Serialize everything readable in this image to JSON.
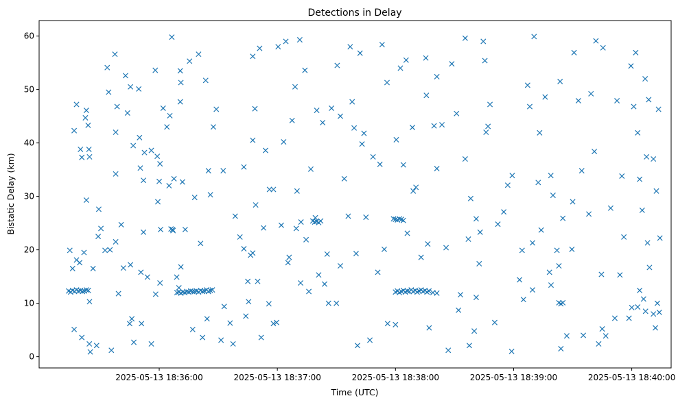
{
  "chart_data": {
    "type": "scatter",
    "title": "Detections in Delay",
    "xlabel": "Time (UTC)",
    "ylabel": "Bistatic Delay (km)",
    "x_reference": "2025-05-13 18:35:00",
    "x_units": "seconds since 2025-05-13 18:35:00",
    "xlim": [
      -1,
      320
    ],
    "ylim": [
      -2.1,
      62.9
    ],
    "x_ticks": [
      {
        "value": 60,
        "label": "2025-05-13 18:36:00"
      },
      {
        "value": 120,
        "label": "2025-05-13 18:37:00"
      },
      {
        "value": 180,
        "label": "2025-05-13 18:38:00"
      },
      {
        "value": 240,
        "label": "2025-05-13 18:39:00"
      },
      {
        "value": 300,
        "label": "2025-05-13 18:40:00"
      }
    ],
    "y_ticks": [
      {
        "value": 0,
        "label": "0"
      },
      {
        "value": 10,
        "label": "10"
      },
      {
        "value": 20,
        "label": "20"
      },
      {
        "value": 30,
        "label": "30"
      },
      {
        "value": 40,
        "label": "40"
      },
      {
        "value": 50,
        "label": "50"
      },
      {
        "value": 60,
        "label": "60"
      }
    ],
    "grid": false,
    "marker": "x",
    "color": "#1f77b4",
    "points": [
      [
        14.6,
        19.9
      ],
      [
        16,
        16.5
      ],
      [
        16.8,
        42.3
      ],
      [
        16.8,
        5.1
      ],
      [
        18,
        47.2
      ],
      [
        18,
        18.1
      ],
      [
        19.6,
        17.6
      ],
      [
        20,
        38.8
      ],
      [
        20.7,
        37.3
      ],
      [
        20.7,
        3.6
      ],
      [
        21.8,
        19.5
      ],
      [
        22.5,
        44.7
      ],
      [
        23,
        46.1
      ],
      [
        23,
        29.3
      ],
      [
        23.9,
        43.3
      ],
      [
        24.3,
        38.8
      ],
      [
        24.6,
        37.4
      ],
      [
        24.6,
        10.3
      ],
      [
        25,
        0.9
      ],
      [
        26.4,
        16.5
      ],
      [
        28.2,
        2.1
      ],
      [
        29,
        22.5
      ],
      [
        29.3,
        27.6
      ],
      [
        30.4,
        24
      ],
      [
        32.5,
        19.9
      ],
      [
        33.6,
        54.1
      ],
      [
        34.3,
        49.5
      ],
      [
        35.7,
        1.2
      ],
      [
        37.5,
        56.6
      ],
      [
        37.9,
        42
      ],
      [
        37.9,
        34.2
      ],
      [
        37.9,
        21.5
      ],
      [
        38.6,
        46.8
      ],
      [
        39.3,
        11.8
      ],
      [
        40.7,
        24.7
      ],
      [
        41.8,
        16.6
      ],
      [
        42.9,
        52.6
      ],
      [
        43.9,
        45.6
      ],
      [
        45.4,
        50.5
      ],
      [
        45.4,
        17.2
      ],
      [
        45,
        6.2
      ],
      [
        46.1,
        7.1
      ],
      [
        46.8,
        39.5
      ],
      [
        47.1,
        2.7
      ],
      [
        49.6,
        50.1
      ],
      [
        50,
        41
      ],
      [
        50.4,
        35.3
      ],
      [
        50.7,
        15.8
      ],
      [
        51,
        6.2
      ],
      [
        52,
        23.3
      ],
      [
        52.5,
        38.2
      ],
      [
        54,
        14.9
      ],
      [
        56,
        38.6
      ],
      [
        56,
        2.4
      ],
      [
        58,
        53.6
      ],
      [
        58.2,
        11.7
      ],
      [
        59,
        37.5
      ],
      [
        59.3,
        29
      ],
      [
        60.4,
        36.1
      ],
      [
        60.4,
        13.8
      ],
      [
        60.7,
        23.8
      ],
      [
        62,
        46.5
      ],
      [
        63.9,
        43
      ],
      [
        65,
        32
      ],
      [
        65.4,
        45.1
      ],
      [
        66.4,
        59.8
      ],
      [
        66.8,
        23.8
      ],
      [
        67.5,
        33.3
      ],
      [
        68.9,
        14.9
      ],
      [
        70,
        12.9
      ],
      [
        70.7,
        53.5
      ],
      [
        70.7,
        47.7
      ],
      [
        71,
        51.3
      ],
      [
        71,
        16.8
      ],
      [
        71.8,
        32.7
      ],
      [
        73.2,
        23.8
      ],
      [
        75.4,
        55.3
      ],
      [
        77,
        5.1
      ],
      [
        78,
        29.8
      ],
      [
        80,
        56.6
      ],
      [
        81,
        21.2
      ],
      [
        82,
        3.6
      ],
      [
        83.6,
        51.7
      ],
      [
        84.3,
        7.1
      ],
      [
        85,
        34.8
      ],
      [
        86,
        30.3
      ],
      [
        87.5,
        43
      ],
      [
        89,
        46.3
      ],
      [
        91.4,
        3.1
      ],
      [
        92.5,
        34.8
      ],
      [
        93,
        9.4
      ],
      [
        96,
        6.3
      ],
      [
        97.5,
        2.4
      ],
      [
        98.6,
        26.3
      ],
      [
        101,
        22.4
      ],
      [
        103,
        20.2
      ],
      [
        104,
        7.6
      ],
      [
        105,
        14.1
      ],
      [
        105.4,
        10.3
      ],
      [
        106.4,
        19
      ],
      [
        107.5,
        56.2
      ],
      [
        107.5,
        19.4
      ],
      [
        107.5,
        40.5
      ],
      [
        108.6,
        46.4
      ],
      [
        109,
        28.4
      ],
      [
        110,
        14.1
      ],
      [
        111,
        57.7
      ],
      [
        111.8,
        3.6
      ],
      [
        114,
        38.6
      ],
      [
        115.7,
        9.9
      ],
      [
        118,
        6.2
      ],
      [
        119.6,
        6.4
      ],
      [
        120.4,
        58
      ],
      [
        122,
        24.6
      ],
      [
        123.2,
        40.2
      ],
      [
        124.3,
        59
      ],
      [
        125.4,
        17.6
      ],
      [
        127.5,
        44.2
      ],
      [
        129,
        50.5
      ],
      [
        129.6,
        24
      ],
      [
        131.4,
        59.3
      ],
      [
        131.8,
        13.8
      ],
      [
        134,
        53.6
      ],
      [
        134.6,
        21.9
      ],
      [
        136,
        12.2
      ],
      [
        137,
        35.1
      ],
      [
        139.3,
        26
      ],
      [
        140,
        46.1
      ],
      [
        141,
        15.3
      ],
      [
        143,
        43.8
      ],
      [
        144,
        13.6
      ],
      [
        145.3,
        19.2
      ],
      [
        147.5,
        46.5
      ],
      [
        150.4,
        54.5
      ],
      [
        152,
        17
      ],
      [
        154,
        33.3
      ],
      [
        156,
        26.3
      ],
      [
        157,
        58
      ],
      [
        158,
        47.7
      ],
      [
        159,
        42.8
      ],
      [
        160.7,
        2.1
      ],
      [
        162,
        56.8
      ],
      [
        164,
        41.8
      ],
      [
        165,
        26.1
      ],
      [
        167,
        3.1
      ],
      [
        168.6,
        37.4
      ],
      [
        171,
        15.8
      ],
      [
        172.1,
        36
      ],
      [
        173.2,
        58.4
      ],
      [
        174.3,
        20.1
      ],
      [
        175.7,
        51.3
      ],
      [
        180,
        6
      ],
      [
        180.4,
        40.6
      ],
      [
        182.5,
        54
      ],
      [
        184,
        35.9
      ],
      [
        185.4,
        55.5
      ],
      [
        186,
        23.1
      ],
      [
        188.6,
        42.9
      ],
      [
        190.4,
        31.7
      ],
      [
        193,
        18.6
      ],
      [
        195.4,
        55.9
      ],
      [
        195.7,
        48.9
      ],
      [
        196.4,
        21.1
      ],
      [
        197.1,
        5.4
      ],
      [
        199.6,
        43.2
      ],
      [
        201,
        52.4
      ],
      [
        203.6,
        43.4
      ],
      [
        205.7,
        20.4
      ],
      [
        206.8,
        1.2
      ],
      [
        208.6,
        54.8
      ],
      [
        212,
        8.7
      ],
      [
        215.4,
        59.6
      ],
      [
        215.4,
        37
      ],
      [
        217,
        22
      ],
      [
        217.5,
        2.1
      ],
      [
        218.2,
        29.6
      ],
      [
        220,
        4.8
      ],
      [
        221,
        25.8
      ],
      [
        222.5,
        17.4
      ],
      [
        224.6,
        59
      ],
      [
        225.4,
        55.4
      ],
      [
        227,
        43.1
      ],
      [
        228,
        47.2
      ],
      [
        230.4,
        6.4
      ],
      [
        232,
        24.8
      ],
      [
        235,
        27.1
      ],
      [
        237,
        32.1
      ],
      [
        239,
        1
      ],
      [
        239.3,
        33.9
      ],
      [
        243,
        14.4
      ],
      [
        244.3,
        19.9
      ],
      [
        247.1,
        50.8
      ],
      [
        248.2,
        46.8
      ],
      [
        249.6,
        21.3
      ],
      [
        249.6,
        12.5
      ],
      [
        250.4,
        59.9
      ],
      [
        252.5,
        32.6
      ],
      [
        253.2,
        41.9
      ],
      [
        254,
        23.7
      ],
      [
        256,
        48.6
      ],
      [
        258.2,
        15.8
      ],
      [
        258.9,
        33.9
      ],
      [
        262,
        19.9
      ],
      [
        263.6,
        51.5
      ],
      [
        264,
        1.5
      ],
      [
        267,
        3.9
      ],
      [
        269.6,
        20.1
      ],
      [
        270,
        29
      ],
      [
        270.7,
        56.9
      ],
      [
        272.9,
        47.9
      ],
      [
        274.6,
        34.8
      ],
      [
        275.4,
        4
      ],
      [
        278.2,
        26.7
      ],
      [
        279.3,
        49.2
      ],
      [
        281,
        38.4
      ],
      [
        281.8,
        59.1
      ],
      [
        283.2,
        2.4
      ],
      [
        284.6,
        15.4
      ],
      [
        285.4,
        57.8
      ],
      [
        286.8,
        3.9
      ],
      [
        289.3,
        27.8
      ],
      [
        291.4,
        7.2
      ],
      [
        292.5,
        47.9
      ],
      [
        294,
        15.3
      ],
      [
        296,
        22.4
      ],
      [
        298.6,
        7.2
      ],
      [
        299.6,
        54.4
      ],
      [
        301,
        46.8
      ],
      [
        302,
        56.9
      ],
      [
        303,
        41.9
      ],
      [
        304,
        33.2
      ],
      [
        305.3,
        27.4
      ],
      [
        306.8,
        52
      ],
      [
        307.5,
        37.4
      ],
      [
        308.6,
        48.1
      ],
      [
        311,
        37
      ],
      [
        312.5,
        31
      ],
      [
        313.6,
        46.3
      ],
      [
        314.3,
        22.2
      ],
      [
        14,
        12.3
      ],
      [
        15,
        12.1
      ],
      [
        16,
        12.4
      ],
      [
        17,
        12.2
      ],
      [
        18,
        12.5
      ],
      [
        19,
        12.3
      ],
      [
        20,
        12.4
      ],
      [
        21,
        12.2
      ],
      [
        22,
        12.3
      ],
      [
        23,
        12.5
      ],
      [
        24,
        12.4
      ],
      [
        69,
        12
      ],
      [
        70,
        12.1
      ],
      [
        71,
        11.9
      ],
      [
        72,
        12.1
      ],
      [
        73,
        12
      ],
      [
        74,
        12.2
      ],
      [
        75,
        12.1
      ],
      [
        76,
        12.3
      ],
      [
        77,
        12.2
      ],
      [
        78,
        12.2
      ],
      [
        79,
        12.3
      ],
      [
        80,
        12.1
      ],
      [
        81,
        12.4
      ],
      [
        82,
        12.2
      ],
      [
        83,
        12.3
      ],
      [
        84,
        12.5
      ],
      [
        85,
        12.2
      ],
      [
        86,
        12.4
      ],
      [
        87,
        12.5
      ],
      [
        180,
        12.1
      ],
      [
        181,
        12.3
      ],
      [
        182,
        12
      ],
      [
        183,
        12.2
      ],
      [
        184,
        12.4
      ],
      [
        185,
        12.1
      ],
      [
        186,
        12.3
      ],
      [
        187,
        12.2
      ],
      [
        188,
        12.5
      ],
      [
        189,
        12.2
      ],
      [
        190,
        12.4
      ],
      [
        191,
        12.1
      ],
      [
        192,
        12.3
      ],
      [
        193,
        12.5
      ],
      [
        194,
        12.2
      ],
      [
        195,
        12.4
      ],
      [
        196,
        12.1
      ],
      [
        197,
        12.3
      ],
      [
        199,
        12
      ],
      [
        201,
        11.9
      ],
      [
        138,
        25.4
      ],
      [
        139,
        25.2
      ],
      [
        140,
        25.3
      ],
      [
        141,
        25.1
      ],
      [
        142,
        25.4
      ],
      [
        179,
        25.8
      ],
      [
        180,
        25.7
      ],
      [
        181,
        25.6
      ],
      [
        182,
        25.8
      ],
      [
        183,
        25.7
      ],
      [
        184,
        25.5
      ],
      [
        66,
        23.9
      ],
      [
        67,
        23.6
      ],
      [
        263,
        10.1
      ],
      [
        264,
        9.9
      ],
      [
        265,
        10.1
      ],
      [
        24.5,
        2.4
      ],
      [
        35,
        20
      ],
      [
        52,
        33
      ],
      [
        60,
        32.8
      ],
      [
        103,
        35.5
      ],
      [
        113,
        24.1
      ],
      [
        116,
        31.3
      ],
      [
        118,
        31.3
      ],
      [
        126,
        18.6
      ],
      [
        130,
        31
      ],
      [
        132,
        25.2
      ],
      [
        146,
        10
      ],
      [
        150,
        10
      ],
      [
        152,
        45
      ],
      [
        160,
        19.3
      ],
      [
        163,
        39.8
      ],
      [
        176,
        6.2
      ],
      [
        189,
        31
      ],
      [
        201,
        35.2
      ],
      [
        211,
        45.5
      ],
      [
        213,
        11.6
      ],
      [
        221,
        11.1
      ],
      [
        223,
        23.3
      ],
      [
        226,
        42
      ],
      [
        245,
        10.7
      ],
      [
        259,
        13.4
      ],
      [
        260,
        30.2
      ],
      [
        263,
        17
      ],
      [
        265,
        25.9
      ],
      [
        285,
        5.2
      ],
      [
        295,
        33.8
      ],
      [
        300,
        9.2
      ],
      [
        303,
        9.3
      ],
      [
        304,
        12.4
      ],
      [
        306,
        10.8
      ],
      [
        307,
        8.5
      ],
      [
        308,
        21.3
      ],
      [
        309,
        16.7
      ],
      [
        311,
        8
      ],
      [
        312,
        5.4
      ],
      [
        313,
        10
      ],
      [
        314,
        8.3
      ]
    ]
  }
}
